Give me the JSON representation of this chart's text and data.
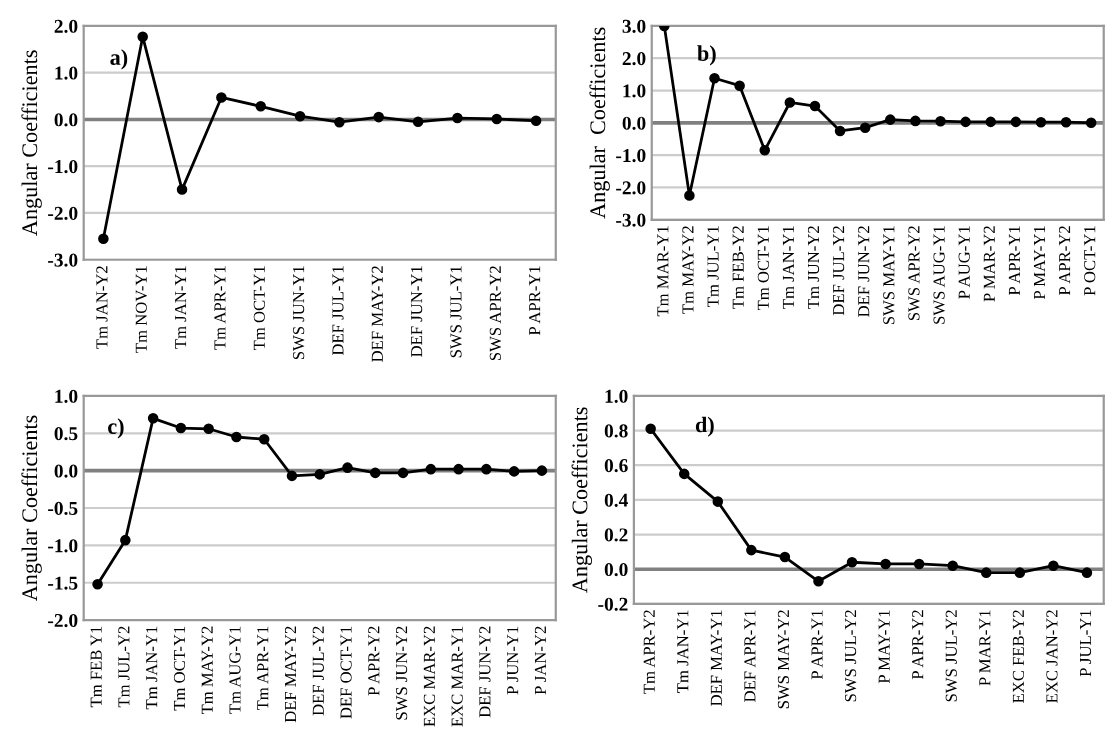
{
  "chart_data": [
    {
      "type": "line",
      "ylabel": "Angular Coefficients",
      "annotations": [
        "a)"
      ],
      "categories": [
        "Tm JAN-Y2",
        "Tm NOV-Y1",
        "Tm JAN-Y1",
        "Tm APR-Y1",
        "Tm OCT-Y1",
        "SWS JUN-Y1",
        "DEF JUL-Y1",
        "DEF MAY-Y2",
        "DEF JUN-Y1",
        "SWS JUL-Y1",
        "SWS APR-Y2",
        "P APR-Y1"
      ],
      "series": [
        {
          "color": "#000000",
          "values": [
            -2.55,
            1.77,
            -1.5,
            0.47,
            0.28,
            0.07,
            -0.06,
            0.05,
            -0.05,
            0.03,
            0.01,
            -0.03
          ]
        }
      ],
      "ylim": [
        -3,
        2
      ],
      "yticks": [
        {
          "value": -3,
          "label": "-3.0"
        },
        {
          "value": -2,
          "label": "-2.0"
        },
        {
          "value": -1,
          "label": "-1.0"
        },
        {
          "value": 0,
          "label": "0.0"
        },
        {
          "value": 1,
          "label": "1.0"
        },
        {
          "value": 2,
          "label": "2.0"
        }
      ],
      "grid": "y",
      "marker": "circle",
      "line_style": "solid",
      "ref_lines": [
        {
          "axis": "y",
          "value": 0,
          "color": "#808080"
        }
      ]
    },
    {
      "type": "line",
      "ylabel": "Angular  Coefficients",
      "annotations": [
        "b)"
      ],
      "categories": [
        "Tm MAR-Y1",
        "Tm MAY-Y2",
        "Tm JUL-Y1",
        "Tm FEB-Y2",
        "Tm OCT-Y1",
        "Tm JAN-Y1",
        "Tm JUN-Y2",
        "DEF JUL-Y2",
        "DEF JUN-Y2",
        "SWS MAY-Y1",
        "SWS APR-Y2",
        "SWS AUG-Y1",
        "P AUG-Y1",
        "P MAR-Y2",
        "P APR-Y1",
        "P MAY-Y1",
        "P APR-Y2",
        "P OCT-Y1"
      ],
      "series": [
        {
          "color": "#000000",
          "values": [
            3.0,
            -2.25,
            1.38,
            1.15,
            -0.85,
            0.63,
            0.52,
            -0.25,
            -0.15,
            0.1,
            0.06,
            0.05,
            0.03,
            0.03,
            0.03,
            0.02,
            0.02,
            0.0
          ]
        }
      ],
      "ylim": [
        -3,
        3
      ],
      "yticks": [
        {
          "value": -3,
          "label": "-3.0"
        },
        {
          "value": -2,
          "label": "-2.0"
        },
        {
          "value": -1,
          "label": "-1.0"
        },
        {
          "value": 0,
          "label": "0.0"
        },
        {
          "value": 1,
          "label": "1.0"
        },
        {
          "value": 2,
          "label": "2.0"
        },
        {
          "value": 3,
          "label": "3.0"
        }
      ],
      "grid": "y",
      "marker": "circle",
      "line_style": "solid",
      "ref_lines": [
        {
          "axis": "y",
          "value": 0,
          "color": "#808080"
        }
      ]
    },
    {
      "type": "line",
      "ylabel": "Angular Coefficients",
      "annotations": [
        "c)"
      ],
      "categories": [
        "Tm FEB Y1",
        "Tm JUL-Y2",
        "Tm JAN-Y1",
        "Tm OCT-Y1",
        "Tm MAY-Y2",
        "Tm AUG-Y1",
        "Tm APR-Y1",
        "DEF MAY-Y2",
        "DEF JUL-Y2",
        "DEF OCT-Y1",
        "P APR-Y2",
        "SWS JUN-Y2",
        "EXC MAR-Y2",
        "EXC MAR-Y1",
        "DEF JUN-Y2",
        "P JUN-Y1",
        "P JAN-Y2"
      ],
      "series": [
        {
          "color": "#000000",
          "values": [
            -1.52,
            -0.93,
            0.7,
            0.57,
            0.56,
            0.45,
            0.42,
            -0.07,
            -0.05,
            0.04,
            -0.03,
            -0.03,
            0.02,
            0.02,
            0.02,
            -0.01,
            0.0
          ]
        }
      ],
      "ylim": [
        -2,
        1
      ],
      "yticks": [
        {
          "value": -2,
          "label": "-2.0"
        },
        {
          "value": -1.5,
          "label": "-1.5"
        },
        {
          "value": -1,
          "label": "-1.0"
        },
        {
          "value": -0.5,
          "label": "-0.5"
        },
        {
          "value": 0,
          "label": "0.0"
        },
        {
          "value": 0.5,
          "label": "0.5"
        },
        {
          "value": 1,
          "label": "1.0"
        }
      ],
      "grid": "y",
      "marker": "circle",
      "line_style": "solid",
      "ref_lines": [
        {
          "axis": "y",
          "value": 0,
          "color": "#808080"
        }
      ]
    },
    {
      "type": "line",
      "ylabel": "Angular Coefficients",
      "annotations": [
        "d)"
      ],
      "categories": [
        "Tm APR-Y2",
        "Tm JAN-Y1",
        "DEF MAY-Y1",
        "DEF APR-Y1",
        "SWS MAY-Y2",
        "P APR-Y1",
        "SWS JUL-Y2",
        "P MAY-Y1",
        "P APR-Y2",
        "SWS JUL-Y2",
        "P MAR-Y1",
        "EXC FEB-Y2",
        "EXC JAN-Y2",
        "P JUL-Y1"
      ],
      "series": [
        {
          "color": "#000000",
          "values": [
            0.81,
            0.55,
            0.39,
            0.11,
            0.07,
            -0.07,
            0.04,
            0.03,
            0.03,
            0.02,
            -0.02,
            -0.02,
            0.02,
            -0.02
          ]
        }
      ],
      "ylim": [
        -0.2,
        1
      ],
      "yticks": [
        {
          "value": -0.2,
          "label": "-0.2"
        },
        {
          "value": 0,
          "label": "0.0"
        },
        {
          "value": 0.2,
          "label": "0.2"
        },
        {
          "value": 0.4,
          "label": "0.4"
        },
        {
          "value": 0.6,
          "label": "0.6"
        },
        {
          "value": 0.8,
          "label": "0.8"
        },
        {
          "value": 1,
          "label": "1.0"
        }
      ],
      "grid": "y",
      "marker": "circle",
      "line_style": "solid",
      "ref_lines": [
        {
          "axis": "y",
          "value": 0,
          "color": "#808080"
        }
      ]
    }
  ]
}
